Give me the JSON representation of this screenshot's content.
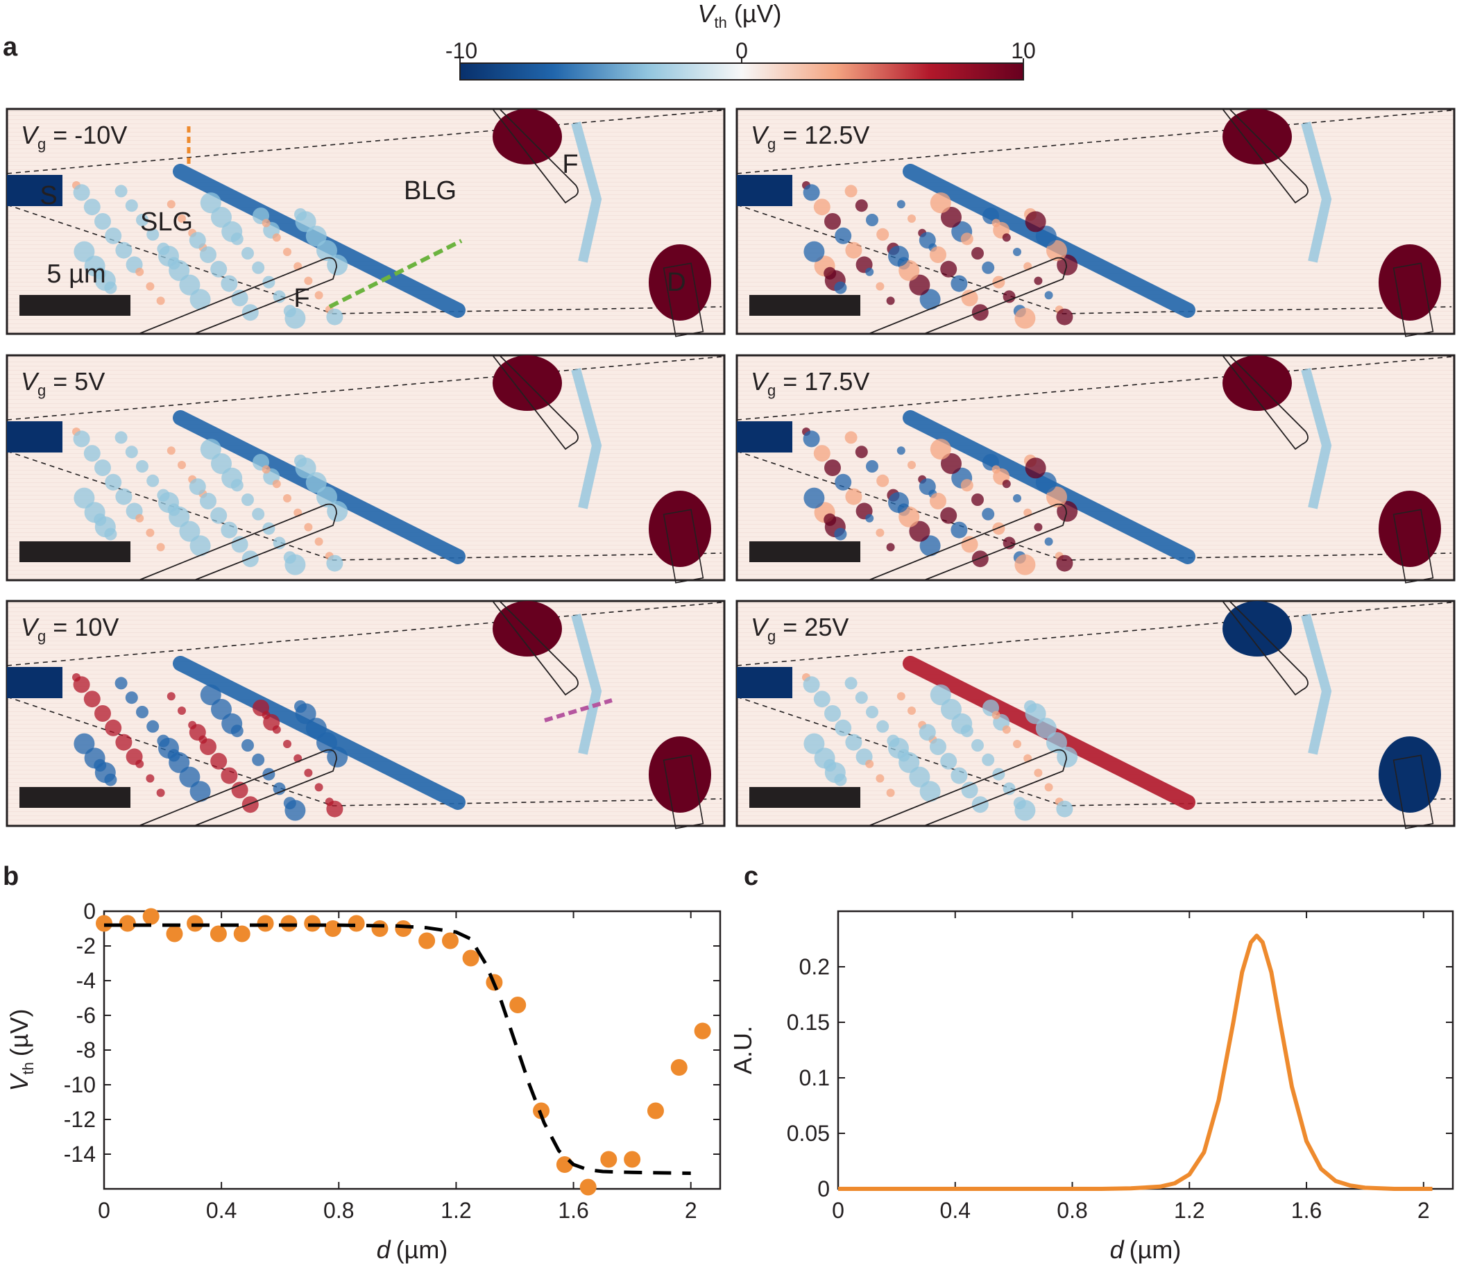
{
  "panel_labels": {
    "a": "a",
    "b": "b",
    "c": "c"
  },
  "colorbar": {
    "title_var": "V",
    "title_sub": "th",
    "title_unit": "(µV)",
    "ticks": [
      "-10",
      "0",
      "10"
    ],
    "colors": [
      "#08306b",
      "#2166ac",
      "#92c5de",
      "#f7f7f7",
      "#f4a582",
      "#b2182b",
      "#67001f"
    ]
  },
  "maps": [
    {
      "var": "V",
      "sub": "g",
      "value": " = -10V"
    },
    {
      "var": "V",
      "sub": "g",
      "value": " = 12.5V"
    },
    {
      "var": "V",
      "sub": "g",
      "value": " = 5V"
    },
    {
      "var": "V",
      "sub": "g",
      "value": " = 17.5V"
    },
    {
      "var": "V",
      "sub": "g",
      "value": " = 10V"
    },
    {
      "var": "V",
      "sub": "g",
      "value": " = 25V"
    }
  ],
  "map_annotations": {
    "source": "S",
    "drain": "D",
    "ferro": "F",
    "slg": "SLG",
    "blg": "BLG",
    "scale_bar": "5 µm"
  },
  "line_colors": {
    "orange": "#ee8a2d",
    "green": "#6cb33f",
    "magenta": "#b5569f",
    "fit": "#000000"
  },
  "chart_data": [
    {
      "type": "scatter",
      "panel": "b",
      "xlabel_var": "d",
      "xlabel_unit": "(µm)",
      "ylabel_var": "V",
      "ylabel_sub": "th",
      "ylabel_unit": "(µV)",
      "xlim": [
        0,
        2.1
      ],
      "ylim": [
        -16,
        0
      ],
      "xticks": [
        0,
        0.4,
        0.8,
        1.2,
        1.6,
        2
      ],
      "xtick_labels": [
        "0",
        "0.4",
        "0.8",
        "1.2",
        "1.6",
        "2"
      ],
      "yticks": [
        0,
        -2,
        -4,
        -6,
        -8,
        -10,
        -12,
        -14
      ],
      "ytick_labels": [
        "0",
        "-2",
        "-4",
        "-6",
        "-8",
        "-10",
        "-12",
        "-14"
      ],
      "series": [
        {
          "kind": "scatter",
          "x": [
            0.0,
            0.08,
            0.16,
            0.24,
            0.31,
            0.39,
            0.47,
            0.55,
            0.63,
            0.71,
            0.78,
            0.86,
            0.94,
            1.02,
            1.1,
            1.18,
            1.25,
            1.33,
            1.41,
            1.49,
            1.57,
            1.65,
            1.72,
            1.8,
            1.88,
            1.96,
            2.04
          ],
          "y": [
            -0.7,
            -0.7,
            -0.3,
            -1.3,
            -0.7,
            -1.3,
            -1.3,
            -0.7,
            -0.7,
            -0.7,
            -1.0,
            -0.7,
            -1.0,
            -1.0,
            -1.7,
            -1.7,
            -2.7,
            -4.1,
            -5.4,
            -11.5,
            -14.6,
            -15.9,
            -14.3,
            -14.3,
            -11.5,
            -9.0,
            -6.9
          ]
        },
        {
          "kind": "line-dashed",
          "x": [
            0.0,
            0.4,
            0.8,
            1.0,
            1.1,
            1.2,
            1.25,
            1.3,
            1.35,
            1.4,
            1.45,
            1.5,
            1.55,
            1.6,
            1.65,
            1.7,
            1.8,
            2.0
          ],
          "y": [
            -0.8,
            -0.8,
            -0.8,
            -0.85,
            -0.95,
            -1.2,
            -1.6,
            -3.0,
            -5.0,
            -7.5,
            -10.0,
            -12.2,
            -13.8,
            -14.6,
            -14.9,
            -15.0,
            -15.05,
            -15.1
          ]
        }
      ]
    },
    {
      "type": "line",
      "panel": "c",
      "xlabel_var": "d",
      "xlabel_unit": "(µm)",
      "ylabel": "A.U.",
      "xlim": [
        0,
        2.1
      ],
      "ylim": [
        0,
        0.25
      ],
      "xticks": [
        0,
        0.4,
        0.8,
        1.2,
        1.6,
        2
      ],
      "xtick_labels": [
        "0",
        "0.4",
        "0.8",
        "1.2",
        "1.6",
        "2"
      ],
      "yticks": [
        0,
        0.05,
        0.1,
        0.15,
        0.2
      ],
      "ytick_labels": [
        "0",
        "0.05",
        "0.1",
        "0.15",
        "0.2"
      ],
      "series": [
        {
          "kind": "line",
          "x": [
            0.0,
            0.9,
            1.0,
            1.1,
            1.15,
            1.2,
            1.25,
            1.3,
            1.35,
            1.38,
            1.41,
            1.43,
            1.45,
            1.48,
            1.51,
            1.55,
            1.6,
            1.65,
            1.7,
            1.75,
            1.8,
            1.9,
            2.03
          ],
          "y": [
            0.0,
            0.0,
            0.0005,
            0.002,
            0.005,
            0.013,
            0.033,
            0.08,
            0.15,
            0.195,
            0.222,
            0.228,
            0.222,
            0.195,
            0.15,
            0.092,
            0.043,
            0.018,
            0.007,
            0.003,
            0.001,
            0.0,
            0.0
          ]
        }
      ]
    }
  ]
}
